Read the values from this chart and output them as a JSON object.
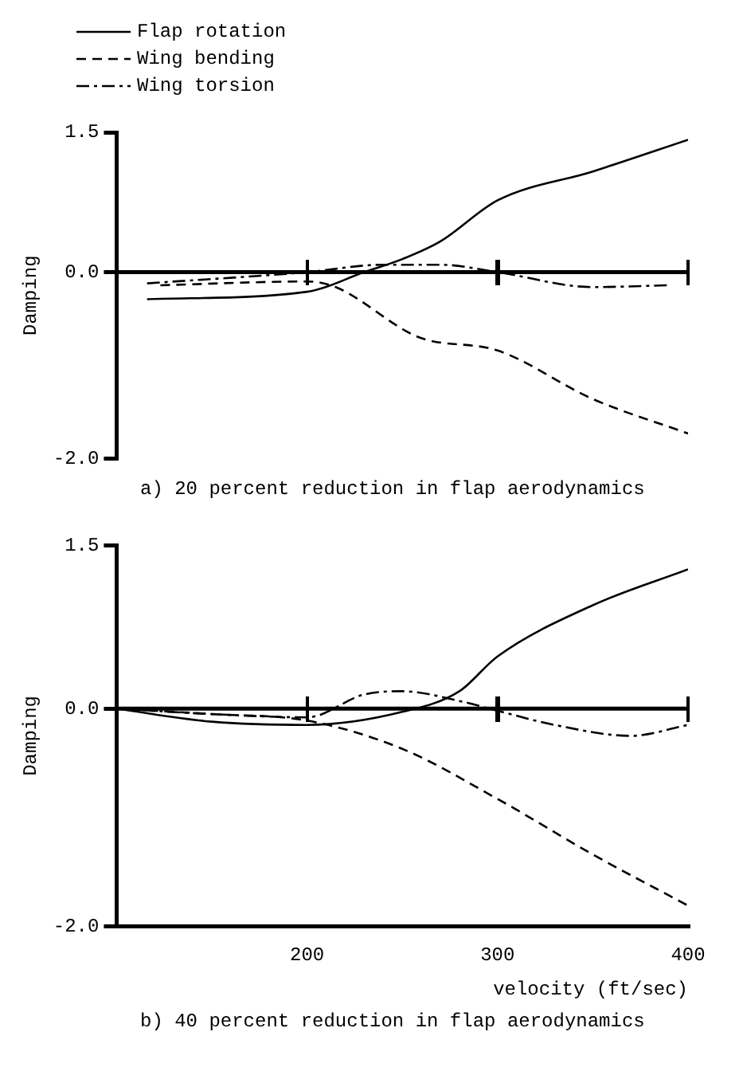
{
  "chart_data": [
    {
      "type": "line",
      "ylabel": "Damping",
      "legend": "top left",
      "grid": false,
      "marker": "none",
      "tick_labels": "y",
      "annotations": [
        "a) 20 percent reduction in flap aerodynamics"
      ],
      "xlim": [
        100,
        400
      ],
      "xticks": [
        {
          "value": 200,
          "label": null
        },
        {
          "value": 300,
          "label": null
        },
        {
          "value": 400,
          "label": null
        }
      ],
      "ylim": [
        -2,
        1.5
      ],
      "yticks": [
        {
          "value": -2,
          "label": "-2.0"
        },
        {
          "value": 0,
          "label": "0.0"
        },
        {
          "value": 1.5,
          "label": "1.5"
        }
      ],
      "ref_lines": [
        {
          "axis": "y",
          "value": 0
        }
      ],
      "series": [
        {
          "name": "Flap rotation",
          "color": "#000000",
          "line_style": "solid",
          "x": [
            116,
            200,
            230,
            250,
            270,
            300,
            350,
            400
          ],
          "values": [
            -0.29,
            -0.21,
            0,
            0.14,
            0.33,
            0.77,
            1.08,
            1.42
          ]
        },
        {
          "name": "Wing bending",
          "color": "#000000",
          "line_style": "dashed",
          "x": [
            123,
            200,
            215,
            259,
            300,
            350,
            400
          ],
          "values": [
            -0.14,
            -0.1,
            -0.16,
            -0.7,
            -0.84,
            -1.36,
            -1.73
          ]
        },
        {
          "name": "Wing torsion",
          "color": "#000000",
          "line_style": "dashdot",
          "x": [
            116,
            200,
            240,
            270,
            300,
            350,
            390
          ],
          "values": [
            -0.12,
            0,
            0.08,
            0.08,
            0,
            -0.16,
            -0.14
          ]
        }
      ]
    },
    {
      "type": "line",
      "ylabel": "Damping",
      "xlabel": "velocity (ft/sec)",
      "legend": false,
      "grid": false,
      "marker": "none",
      "annotations": [
        "b) 40 percent reduction in flap aerodynamics"
      ],
      "xlim": [
        100,
        400
      ],
      "xticks": [
        200,
        300,
        400
      ],
      "ylim": [
        -2,
        1.5
      ],
      "yticks": [
        {
          "value": -2,
          "label": "-2.0"
        },
        {
          "value": 0,
          "label": "0.0"
        },
        {
          "value": 1.5,
          "label": "1.5"
        }
      ],
      "ref_lines": [
        {
          "axis": "y",
          "value": 0
        }
      ],
      "series": [
        {
          "color": "#000000",
          "line_style": "solid",
          "x": [
            100,
            150,
            200,
            250,
            280,
            300,
            350,
            400
          ],
          "values": [
            0,
            -0.12,
            -0.15,
            -0.03,
            0.16,
            0.48,
            0.95,
            1.28
          ]
        },
        {
          "color": "#000000",
          "line_style": "dashed",
          "x": [
            100,
            150,
            200,
            250,
            300,
            350,
            400
          ],
          "values": [
            0,
            -0.05,
            -0.11,
            -0.37,
            -0.83,
            -1.34,
            -1.81
          ]
        },
        {
          "color": "#000000",
          "line_style": "dashdot",
          "x": [
            100,
            150,
            200,
            230,
            250,
            280,
            300,
            330,
            370,
            400
          ],
          "values": [
            0,
            -0.05,
            -0.08,
            0.13,
            0.16,
            0.07,
            -0.02,
            -0.15,
            -0.25,
            -0.15
          ]
        }
      ]
    }
  ]
}
